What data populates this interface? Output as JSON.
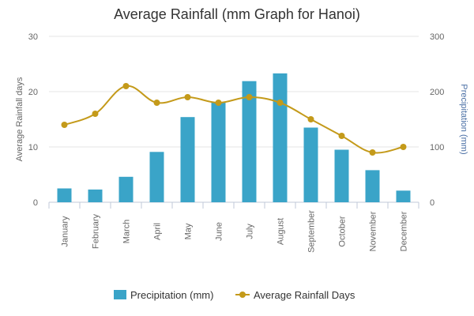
{
  "chart_data": {
    "type": "bar-line-combo",
    "title": "Average Rainfall (mm Graph for Hanoi)",
    "categories": [
      "January",
      "February",
      "March",
      "April",
      "May",
      "June",
      "July",
      "August",
      "September",
      "October",
      "November",
      "December"
    ],
    "series": [
      {
        "name": "Precipitation (mm)",
        "type": "bar",
        "axis": "right",
        "color": "#3aa4c8",
        "values": [
          25,
          23,
          46,
          91,
          154,
          181,
          219,
          233,
          135,
          95,
          58,
          21
        ]
      },
      {
        "name": "Average Rainfall Days",
        "type": "line",
        "axis": "left",
        "color": "#c49a1a",
        "values": [
          14,
          16,
          21,
          18,
          19,
          18,
          19,
          18,
          15,
          12,
          9,
          10
        ]
      }
    ],
    "left_axis": {
      "label": "Average Rainfall days",
      "min": 0,
      "max": 30,
      "ticks": [
        "0",
        "10",
        "20",
        "30"
      ],
      "color": "#666666"
    },
    "right_axis": {
      "label": "Precipitation (mm)",
      "min": 0,
      "max": 300,
      "ticks": [
        "0",
        "100",
        "200",
        "300"
      ],
      "color": "#4a6fa5"
    },
    "grid": true,
    "legend_position": "bottom-center"
  }
}
